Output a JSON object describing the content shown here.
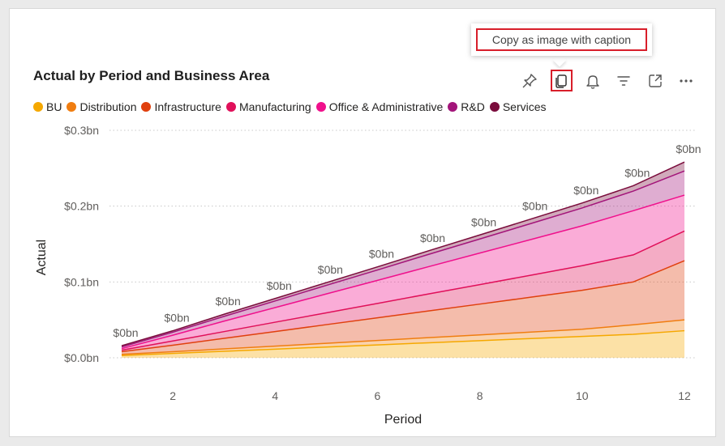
{
  "tooltip": {
    "text": "Copy as image with caption"
  },
  "toolbar": {
    "icons": [
      "pin-icon",
      "copy-icon",
      "bell-icon",
      "filter-icon",
      "focus-mode-icon",
      "more-options-icon"
    ]
  },
  "colors": {
    "BU": "#f5a800",
    "Distribution": "#f07d10",
    "Infrastructure": "#e0400e",
    "Manufacturing": "#e0105a",
    "Office & Administrative": "#f0108c",
    "R&D": "#a3157a",
    "Services": "#7a0c3c",
    "highlight": "#d81e2a"
  },
  "chart_data": {
    "type": "area",
    "stacked": true,
    "title": "Actual by Period and Business Area",
    "xlabel": "Period",
    "ylabel": "Actual",
    "x": [
      1,
      2,
      3,
      4,
      5,
      6,
      7,
      8,
      9,
      10,
      11,
      12
    ],
    "x_ticks": [
      2,
      4,
      6,
      8,
      10,
      12
    ],
    "y_ticks": [
      "$0.0bn",
      "$0.1bn",
      "$0.2bn",
      "$0.3bn"
    ],
    "ylim": [
      0,
      0.3
    ],
    "grid": true,
    "legend_position": "top-left",
    "series": [
      {
        "name": "BU",
        "values": [
          0.003,
          0.0058,
          0.0086,
          0.0114,
          0.0142,
          0.017,
          0.0198,
          0.0226,
          0.0254,
          0.0282,
          0.031,
          0.0357
        ]
      },
      {
        "name": "Distribution",
        "values": [
          0.0015,
          0.0022,
          0.0031,
          0.004,
          0.0049,
          0.0058,
          0.0067,
          0.0076,
          0.0085,
          0.0094,
          0.0125,
          0.0143
        ]
      },
      {
        "name": "Infrastructure",
        "values": [
          0.0035,
          0.0085,
          0.0139,
          0.0192,
          0.0246,
          0.0299,
          0.0353,
          0.0406,
          0.046,
          0.0514,
          0.0565,
          0.078
        ]
      },
      {
        "name": "Manufacturing",
        "values": [
          0.002,
          0.0056,
          0.0089,
          0.0123,
          0.0156,
          0.019,
          0.0224,
          0.0257,
          0.029,
          0.0324,
          0.0357,
          0.0392
        ]
      },
      {
        "name": "Office & Administrative",
        "values": [
          0.0021,
          0.0077,
          0.0138,
          0.0193,
          0.0249,
          0.0304,
          0.036,
          0.0416,
          0.0471,
          0.0526,
          0.0583,
          0.0473
        ]
      },
      {
        "name": "R&D",
        "values": [
          0.0021,
          0.0039,
          0.0063,
          0.0087,
          0.0113,
          0.0137,
          0.0162,
          0.0186,
          0.0211,
          0.0236,
          0.0259,
          0.0319
        ]
      },
      {
        "name": "Services",
        "values": [
          0.0017,
          0.0019,
          0.0028,
          0.0033,
          0.0036,
          0.0041,
          0.0047,
          0.0053,
          0.0059,
          0.0065,
          0.007,
          0.0118
        ]
      }
    ],
    "data_labels": [
      "$0bn",
      "$0bn",
      "$0bn",
      "$0bn",
      "$0bn",
      "$0bn",
      "$0bn",
      "$0bn",
      "$0bn",
      "$0bn",
      "$0bn",
      "$0bn"
    ]
  }
}
